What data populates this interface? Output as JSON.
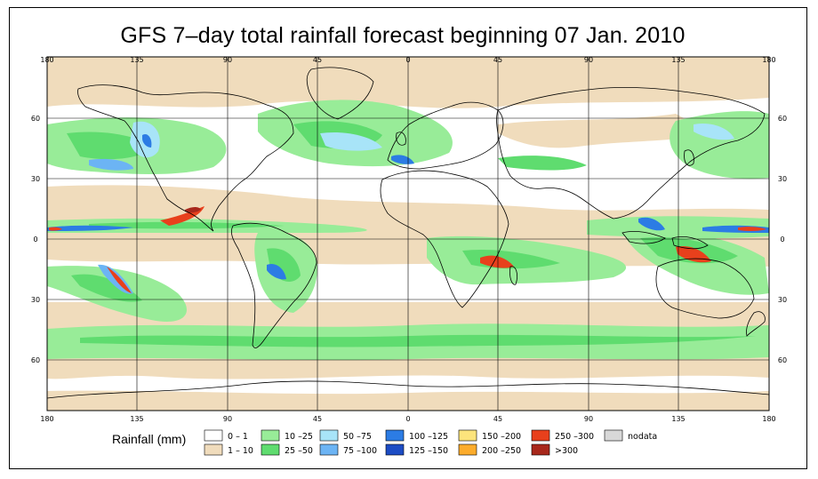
{
  "title": "GFS 7–day total rainfall forecast beginning 07 Jan. 2010",
  "map": {
    "lon_ticks": [
      "180",
      "135",
      "90",
      "45",
      "0",
      "45",
      "90",
      "135",
      "180"
    ],
    "lat_ticks": [
      "60",
      "30",
      "0",
      "30",
      "60"
    ]
  },
  "legend": {
    "title": "Rainfall (mm)",
    "items": [
      {
        "label": "0 – 1",
        "color": "#ffffff"
      },
      {
        "label": "1 – 10",
        "color": "#f0dcbc"
      },
      {
        "label": "10 –25",
        "color": "#98ec98"
      },
      {
        "label": "25 –50",
        "color": "#5fdc6f"
      },
      {
        "label": "50 –75",
        "color": "#a8e4f8"
      },
      {
        "label": "75 –100",
        "color": "#6cb4f4"
      },
      {
        "label": "100 –125",
        "color": "#2c7ce4"
      },
      {
        "label": "125 –150",
        "color": "#1c4cc4"
      },
      {
        "label": "150 –200",
        "color": "#fce47c"
      },
      {
        "label": "200 –250",
        "color": "#fcac2c"
      },
      {
        "label": "250 –300",
        "color": "#e8401c"
      },
      {
        "label": ">300",
        "color": "#a8281c"
      },
      {
        "label": "nodata",
        "color": "#d8d8d8"
      }
    ]
  }
}
